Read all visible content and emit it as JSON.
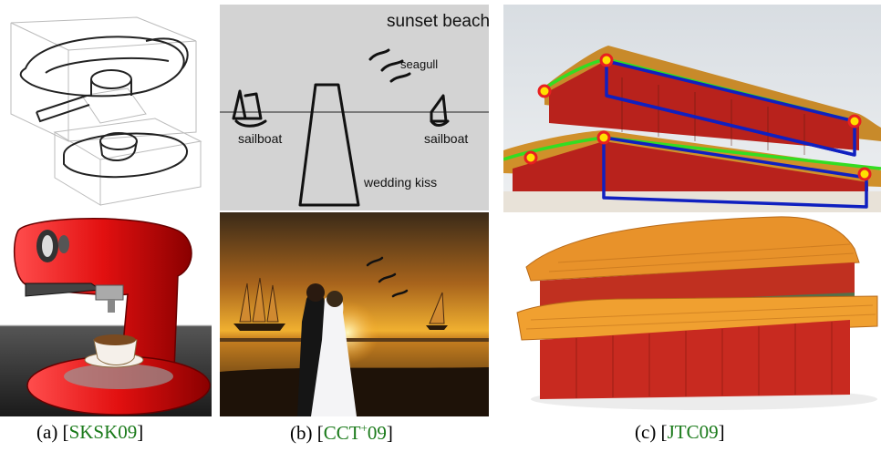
{
  "figure": {
    "panels": [
      {
        "id": "a",
        "label": "(a) [",
        "cite": "SKSK09",
        "close": "]"
      },
      {
        "id": "b",
        "label": "(b) [",
        "cite": "CCT",
        "cite_sup": "+",
        "cite_tail": "09",
        "close": "]"
      },
      {
        "id": "c",
        "label": "(c) [",
        "cite": "JTC09",
        "close": "]"
      }
    ],
    "sketch_labels": {
      "title": "sunset beach",
      "seagull": "seagull",
      "sailboat_left": "sailboat",
      "sailboat_right": "sailboat",
      "wedding": "wedding kiss"
    }
  },
  "colors": {
    "citation": "#1a7a1a",
    "sketch_bg": "#d3d3d3",
    "espresso_red": "#e21010",
    "roof_orange": "#e8922a",
    "wall_red": "#b8221c",
    "outline_green": "#33dd22",
    "outline_blue": "#1020c0",
    "marker_yellow": "#ffe000"
  }
}
